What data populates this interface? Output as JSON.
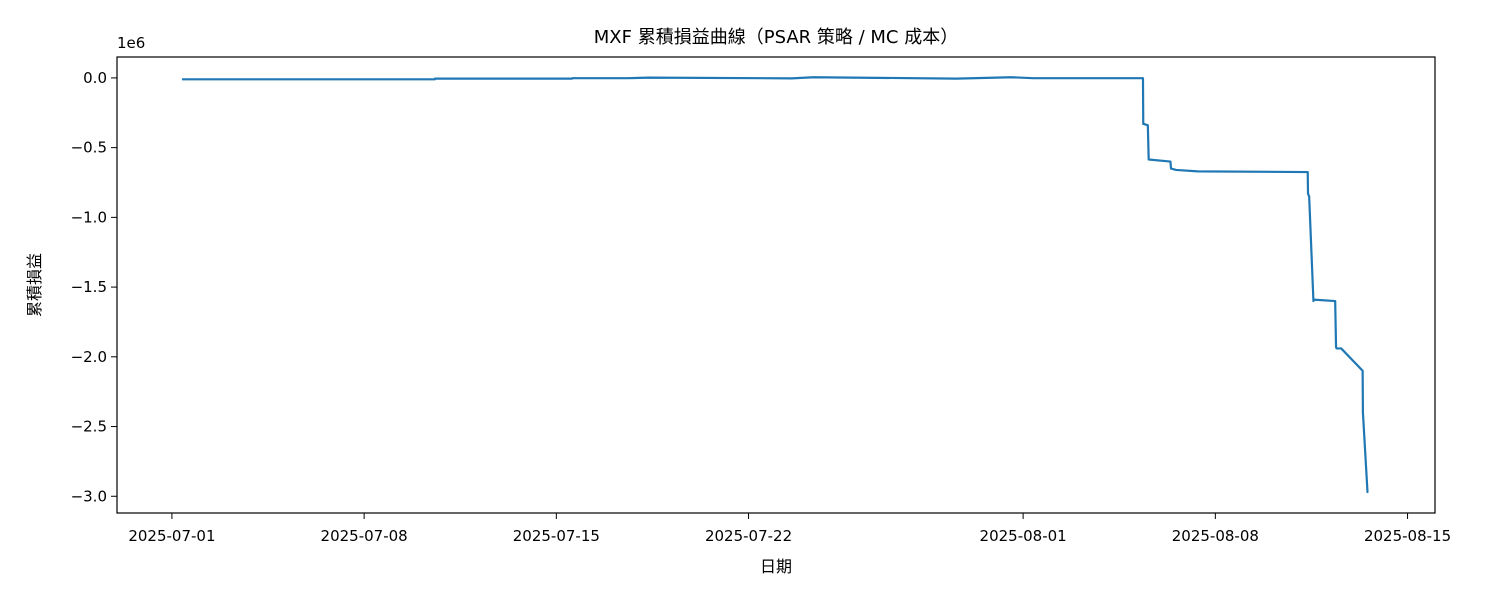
{
  "chart_data": {
    "type": "line",
    "title": "MXF 累積損益曲線（PSAR 策略 / MC 成本）",
    "xlabel": "日期",
    "ylabel": "累積損益",
    "y_offset_label": "1e6",
    "y_scale": 1000000,
    "xlim": [
      "2025-06-29T00:00",
      "2025-08-16T00:00"
    ],
    "ylim": [
      -3120000,
      150000
    ],
    "x_ticks": [
      "2025-07-01",
      "2025-07-08",
      "2025-07-15",
      "2025-07-22",
      "2025-08-01",
      "2025-08-08",
      "2025-08-15"
    ],
    "y_ticks": [
      0,
      -500000,
      -1000000,
      -1500000,
      -2000000,
      -2500000,
      -3000000
    ],
    "y_tick_labels": [
      "0.0",
      "−0.5",
      "−1.0",
      "−1.5",
      "−2.0",
      "−2.5",
      "−3.0"
    ],
    "grid": false,
    "color": "#1f77b4",
    "series": [
      {
        "x": [
          "2025-07-01T08:45",
          "2025-07-10T13:45",
          "2025-07-10T14:00",
          "2025-07-15T13:45",
          "2025-07-15T14:00",
          "2025-07-17T13:45",
          "2025-07-18T08:45",
          "2025-07-23T13:45",
          "2025-07-24T08:45",
          "2025-07-29T13:45",
          "2025-07-31T13:45",
          "2025-08-01T08:45",
          "2025-08-05T08:45",
          "2025-08-05T09:00",
          "2025-08-05T09:30",
          "2025-08-05T13:00",
          "2025-08-05T13:45",
          "2025-08-06T08:45",
          "2025-08-06T09:15",
          "2025-08-06T13:45",
          "2025-08-07T08:45",
          "2025-08-11T08:45",
          "2025-08-11T09:00",
          "2025-08-11T10:00",
          "2025-08-11T13:45",
          "2025-08-11T14:00",
          "2025-08-12T08:45",
          "2025-08-12T09:30",
          "2025-08-12T10:00",
          "2025-08-12T14:00",
          "2025-08-13T08:45",
          "2025-08-13T09:00",
          "2025-08-13T13:00",
          "2025-08-13T13:45"
        ],
        "y": [
          -10000,
          -10000,
          -5000,
          -5000,
          -2000,
          -2000,
          2000,
          -3000,
          5000,
          -5000,
          5000,
          -2000,
          -2000,
          -330000,
          -330000,
          -340000,
          -585000,
          -600000,
          -650000,
          -660000,
          -670000,
          -675000,
          -830000,
          -850000,
          -1600000,
          -1590000,
          -1600000,
          -1930000,
          -1940000,
          -1940000,
          -2100000,
          -2400000,
          -2970000,
          -2970000
        ]
      }
    ]
  }
}
